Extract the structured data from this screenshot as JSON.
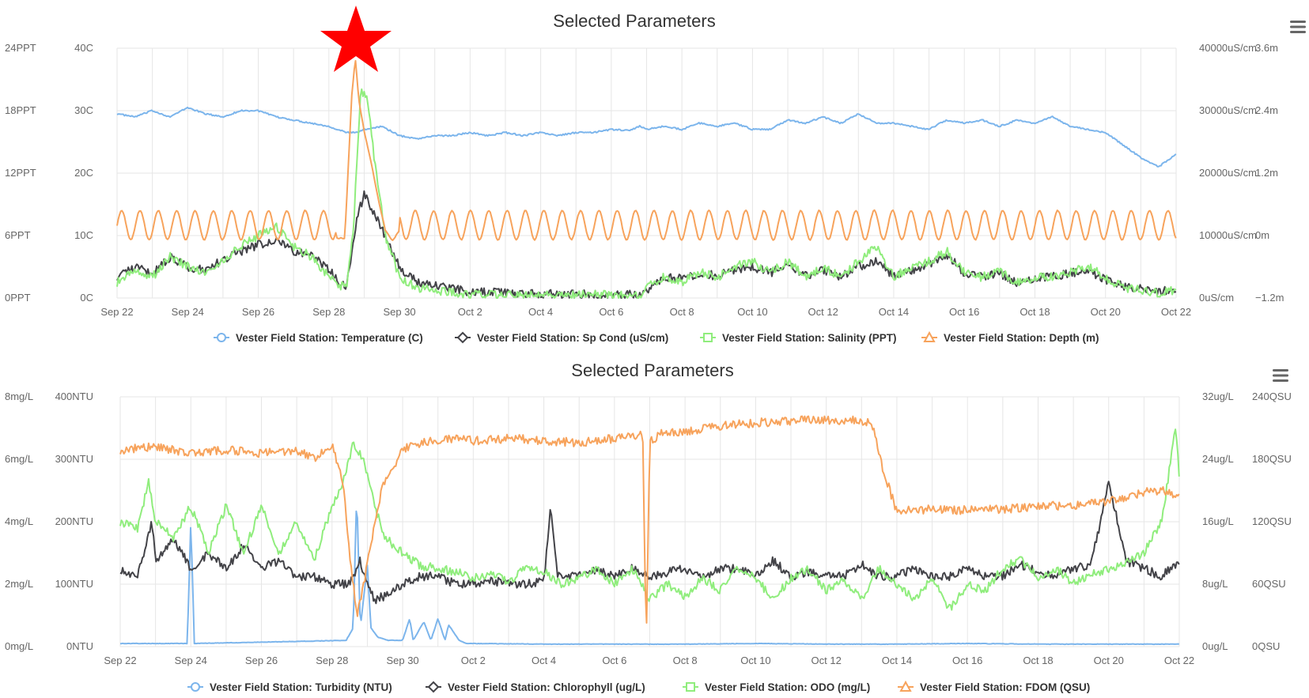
{
  "app": {
    "chart_title_labels": [
      "Selected Parameters",
      "Selected Parameters"
    ],
    "menu_icon": "hamburger-menu-icon",
    "star_icon": "red-star-icon",
    "colors": {
      "blue": "#7cb5ec",
      "black": "#434348",
      "green": "#90ed7d",
      "orange": "#f7a35c",
      "star": "#ff0000",
      "grid": "#e6e6e6",
      "axis_text": "#666666",
      "title_text": "#333333"
    }
  },
  "chart_data": [
    {
      "type": "line",
      "title": "Selected Parameters",
      "x_ticks": [
        "Sep 22",
        "Sep 24",
        "Sep 26",
        "Sep 28",
        "Sep 30",
        "Oct 2",
        "Oct 4",
        "Oct 6",
        "Oct 8",
        "Oct 10",
        "Oct 12",
        "Oct 14",
        "Oct 16",
        "Oct 18",
        "Oct 20",
        "Oct 22"
      ],
      "x_range_days": [
        0,
        30
      ],
      "axes": {
        "left_outer": {
          "ticks": [
            "0PPT",
            "6PPT",
            "12PPT",
            "18PPT",
            "24PPT"
          ],
          "range": [
            0,
            24
          ]
        },
        "left_inner": {
          "ticks": [
            "0C",
            "10C",
            "20C",
            "30C",
            "40C"
          ],
          "range": [
            0,
            40
          ]
        },
        "right_inner": {
          "ticks": [
            "0uS/cm",
            "10000uS/cm",
            "20000uS/cm",
            "30000uS/cm",
            "40000uS/cm"
          ],
          "range": [
            0,
            40000
          ]
        },
        "right_outer": {
          "ticks": [
            "−1.2m",
            "0m",
            "1.2m",
            "2.4m",
            "3.6m"
          ],
          "range": [
            -1.2,
            3.6
          ]
        }
      },
      "annotation": {
        "type": "star",
        "x_day": 6.8
      },
      "series": [
        {
          "name": "Vester Field Station: Temperature (C)",
          "color": "blue",
          "marker": "circle",
          "axis": "left_inner",
          "x": [
            0,
            0.5,
            1,
            1.5,
            2,
            2.5,
            3,
            3.5,
            4,
            4.5,
            5,
            5.5,
            6,
            6.5,
            6.8,
            7,
            7.5,
            8,
            8.5,
            9,
            9.5,
            10,
            10.5,
            11,
            11.5,
            12,
            12.5,
            13,
            13.5,
            14,
            14.5,
            14.8,
            15,
            15.5,
            16,
            16.5,
            17,
            17.5,
            18,
            18.5,
            19,
            19.5,
            20,
            20.5,
            21,
            21.5,
            22,
            22.5,
            23,
            23.5,
            24,
            24.5,
            25,
            25.5,
            26,
            26.5,
            27,
            27.5,
            28,
            28.5,
            29,
            29.5,
            30
          ],
          "y": [
            29.5,
            29,
            30,
            29,
            30.5,
            29.5,
            29,
            30,
            30,
            29,
            28.5,
            28,
            27.5,
            26.5,
            26.5,
            27,
            27.5,
            26,
            25.5,
            26,
            26,
            26.5,
            26,
            26.5,
            26,
            26.5,
            26,
            26.5,
            26.5,
            27,
            26.8,
            27.5,
            27,
            27.5,
            27,
            28,
            27.5,
            28,
            27,
            27,
            28.5,
            28,
            29,
            28,
            29.5,
            28,
            28,
            27.5,
            27,
            28.5,
            28,
            28.5,
            27.5,
            28.5,
            28,
            29,
            27.5,
            27,
            26.5,
            24.5,
            22.5,
            21,
            23
          ]
        },
        {
          "name": "Vester Field Station: Sp Cond (uS/cm)",
          "color": "black",
          "marker": "diamond",
          "axis": "right_inner",
          "x": [
            0,
            0.5,
            1,
            1.5,
            2,
            2.5,
            3,
            3.5,
            4,
            4.5,
            5,
            5.5,
            6,
            6.3,
            6.5,
            6.8,
            7,
            7.2,
            7.5,
            8,
            8.5,
            9,
            9.5,
            10,
            11,
            12,
            13,
            14,
            14.8,
            15,
            15.5,
            16,
            16.5,
            17,
            17.5,
            18,
            18.5,
            19,
            19.5,
            20,
            20.5,
            21,
            21.5,
            22,
            22.5,
            23,
            23.5,
            24,
            24.5,
            25,
            25.5,
            26,
            26.5,
            27,
            27.5,
            28,
            28.5,
            29,
            29.5,
            30
          ],
          "y": [
            3500,
            5000,
            4000,
            6500,
            5000,
            4500,
            6000,
            7500,
            8500,
            9500,
            7500,
            7000,
            4500,
            2500,
            2000,
            13000,
            16500,
            14500,
            11000,
            5000,
            2500,
            2000,
            1500,
            1000,
            800,
            700,
            600,
            500,
            500,
            1300,
            3500,
            3000,
            4000,
            3500,
            4500,
            5000,
            4000,
            5500,
            3500,
            4500,
            3500,
            5000,
            6000,
            3500,
            4500,
            5500,
            7000,
            4000,
            3500,
            4000,
            2500,
            3000,
            3500,
            4000,
            4500,
            3000,
            2000,
            1500,
            1000,
            1500
          ]
        },
        {
          "name": "Vester Field Station: Salinity (PPT)",
          "color": "green",
          "marker": "square",
          "axis": "left_outer",
          "x": [
            0,
            0.5,
            1,
            1.5,
            2,
            2.5,
            3,
            3.5,
            4,
            4.5,
            5,
            5.5,
            6,
            6.3,
            6.5,
            6.7,
            6.9,
            7.1,
            7.3,
            7.6,
            8,
            8.5,
            9,
            9.5,
            10,
            11,
            12,
            13,
            14,
            14.8,
            15,
            15.5,
            16,
            16.5,
            17,
            17.5,
            18,
            18.5,
            19,
            19.5,
            20,
            20.5,
            21,
            21.5,
            22,
            22.5,
            23,
            23.5,
            24,
            24.5,
            25,
            25.5,
            26,
            26.5,
            27,
            27.5,
            28,
            28.5,
            29,
            29.5,
            30
          ],
          "y": [
            1.5,
            2.5,
            2,
            4,
            3,
            2.5,
            3.5,
            5,
            6,
            7,
            5,
            4,
            2,
            1.2,
            1,
            7,
            20,
            19,
            13,
            6,
            2,
            1,
            0.8,
            0.5,
            0.4,
            0.3,
            0.3,
            0.3,
            0.3,
            0.2,
            1,
            2,
            1.5,
            2.5,
            2,
            3,
            3.5,
            2.5,
            3.5,
            2,
            3,
            2,
            3.5,
            5,
            2,
            3,
            3.5,
            4.5,
            2.5,
            2,
            2.5,
            1.5,
            2,
            2,
            2.5,
            3,
            2,
            1,
            0.8,
            0.5,
            0.8
          ]
        },
        {
          "name": "Vester Field Station: Depth (m)",
          "color": "orange",
          "marker": "triangle",
          "axis": "right_outer",
          "periodic": {
            "center": 0.2,
            "amplitude": 0.28,
            "period_days": 0.52
          },
          "x": [
            6.2,
            6.45,
            6.65,
            6.75,
            6.85,
            7.0,
            7.2,
            7.4,
            7.6,
            7.8,
            8.0
          ],
          "y": [
            -0.05,
            -0.05,
            2.7,
            3.4,
            2.6,
            2.0,
            1.4,
            0.7,
            0.1,
            -0.1,
            0.1
          ]
        }
      ]
    },
    {
      "type": "line",
      "title": "Selected Parameters",
      "x_ticks": [
        "Sep 22",
        "Sep 24",
        "Sep 26",
        "Sep 28",
        "Sep 30",
        "Oct 2",
        "Oct 4",
        "Oct 6",
        "Oct 8",
        "Oct 10",
        "Oct 12",
        "Oct 14",
        "Oct 16",
        "Oct 18",
        "Oct 20",
        "Oct 22"
      ],
      "x_range_days": [
        0,
        30
      ],
      "axes": {
        "left_outer": {
          "ticks": [
            "0mg/L",
            "2mg/L",
            "4mg/L",
            "6mg/L",
            "8mg/L"
          ],
          "range": [
            0,
            8
          ]
        },
        "left_inner": {
          "ticks": [
            "0NTU",
            "100NTU",
            "200NTU",
            "300NTU",
            "400NTU"
          ],
          "range": [
            0,
            400
          ]
        },
        "right_inner": {
          "ticks": [
            "0ug/L",
            "8ug/L",
            "16ug/L",
            "24ug/L",
            "32ug/L"
          ],
          "range": [
            0,
            32
          ]
        },
        "right_outer": {
          "ticks": [
            "0QSU",
            "60QSU",
            "120QSU",
            "180QSU",
            "240QSU"
          ],
          "range": [
            0,
            240
          ]
        }
      },
      "series": [
        {
          "name": "Vester Field Station: Turbidity (NTU)",
          "color": "blue",
          "marker": "circle",
          "axis": "left_inner",
          "x": [
            0,
            1.9,
            2,
            2.1,
            6.4,
            6.6,
            6.7,
            6.8,
            7.0,
            7.1,
            7.3,
            7.6,
            8,
            8.2,
            8.3,
            8.6,
            8.8,
            9,
            9.2,
            9.3,
            9.6,
            9.8,
            10,
            12,
            14,
            16,
            18,
            20,
            22,
            24,
            26,
            28,
            30
          ],
          "y": [
            5,
            5,
            200,
            5,
            10,
            30,
            250,
            30,
            130,
            30,
            15,
            10,
            10,
            45,
            10,
            40,
            10,
            45,
            10,
            35,
            10,
            5,
            5,
            4,
            4,
            4,
            5,
            4,
            4,
            5,
            4,
            4,
            4
          ]
        },
        {
          "name": "Vester Field Station: Chlorophyll (ug/L)",
          "color": "black",
          "marker": "diamond",
          "axis": "right_inner",
          "x": [
            0,
            0.5,
            0.9,
            1,
            1.5,
            2,
            2.5,
            3,
            3.5,
            4,
            4.5,
            5,
            5.5,
            6,
            6.5,
            6.8,
            7,
            7.2,
            7.5,
            8,
            8.5,
            9,
            9.5,
            10,
            10.5,
            11,
            11.5,
            12,
            12.2,
            12.4,
            13,
            13.5,
            14,
            14.5,
            15,
            15.5,
            16,
            16.5,
            17,
            17.5,
            18,
            18.5,
            19,
            19.5,
            20,
            20.5,
            21,
            21.5,
            22,
            22.5,
            23,
            23.5,
            24,
            24.5,
            25,
            25.5,
            26,
            26.5,
            27,
            27.5,
            28,
            28.5,
            29,
            29.5,
            30
          ],
          "y": [
            10,
            9,
            16,
            11,
            14,
            10,
            12,
            10,
            13,
            10,
            11,
            9,
            9,
            8,
            8,
            11,
            8,
            6,
            6.5,
            8,
            9,
            9,
            8,
            8,
            8.5,
            8,
            8,
            8.5,
            18,
            9,
            9,
            10,
            9,
            10,
            9,
            9.5,
            10,
            9,
            10,
            10,
            9,
            11,
            9,
            9.5,
            9,
            9,
            10.5,
            9,
            9,
            10,
            9,
            9,
            10,
            9,
            9,
            10.5,
            9.5,
            9,
            10,
            10.5,
            21,
            11,
            10,
            9,
            11
          ]
        },
        {
          "name": "Vester Field Station: ODO (mg/L)",
          "color": "green",
          "marker": "square",
          "axis": "left_outer",
          "x": [
            0,
            0.5,
            0.8,
            1,
            1.5,
            2,
            2.5,
            3,
            3.5,
            4,
            4.5,
            5,
            5.5,
            6,
            6.3,
            6.6,
            6.9,
            7.2,
            7.5,
            8,
            8.5,
            9,
            9.5,
            10,
            10.5,
            11,
            11.5,
            12,
            12.5,
            13,
            13.5,
            14,
            14.5,
            15,
            15.5,
            16,
            16.5,
            17,
            17.5,
            18,
            18.5,
            19,
            19.5,
            20,
            20.5,
            21,
            21.5,
            22,
            22.5,
            23,
            23.5,
            24,
            24.5,
            25,
            25.5,
            26,
            26.5,
            27,
            27.5,
            28,
            28.5,
            29,
            29.5,
            29.9,
            30
          ],
          "y": [
            4,
            3.8,
            5.3,
            4,
            3.5,
            4.5,
            3,
            4.5,
            3,
            4.5,
            3,
            4,
            2.8,
            4.5,
            5.2,
            6.5,
            6,
            4.5,
            3.5,
            3,
            2.6,
            2.5,
            2.4,
            2.2,
            2.3,
            2.1,
            2.5,
            2.4,
            2,
            2.2,
            2.5,
            2,
            2.5,
            1.5,
            2,
            1.6,
            2.2,
            1.8,
            2.5,
            2.2,
            1.5,
            2.2,
            2.5,
            1.8,
            2.1,
            1.5,
            2.5,
            2,
            1.5,
            2.2,
            1.2,
            2,
            1.8,
            2.5,
            2.8,
            2.2,
            2.5,
            2,
            2.3,
            2.5,
            2.7,
            3,
            4,
            7,
            5.4
          ]
        },
        {
          "name": "Vester Field Station: FDOM (QSU)",
          "color": "orange",
          "marker": "triangle",
          "axis": "right_outer",
          "x": [
            0,
            1,
            2,
            3,
            4,
            5,
            5.5,
            6,
            6.3,
            6.5,
            6.7,
            6.9,
            7.1,
            7.4,
            7.7,
            8,
            8.5,
            9,
            9.5,
            10,
            11,
            12,
            13,
            14,
            14.5,
            14.8,
            14.9,
            15,
            15.1,
            15.3,
            16,
            17,
            18,
            19,
            20,
            21,
            21.3,
            21.6,
            22,
            23,
            24,
            25,
            26,
            27,
            28,
            29,
            29.5,
            30
          ],
          "y": [
            189,
            192,
            186,
            189,
            186,
            189,
            180,
            195,
            160,
            90,
            30,
            60,
            100,
            150,
            170,
            190,
            195,
            198,
            200,
            198,
            200,
            198,
            196,
            200,
            202,
            205,
            0,
            200,
            198,
            205,
            207,
            212,
            215,
            217,
            218,
            217,
            214,
            170,
            130,
            132,
            131,
            132,
            135,
            136,
            140,
            148,
            150,
            145
          ]
        }
      ]
    }
  ]
}
